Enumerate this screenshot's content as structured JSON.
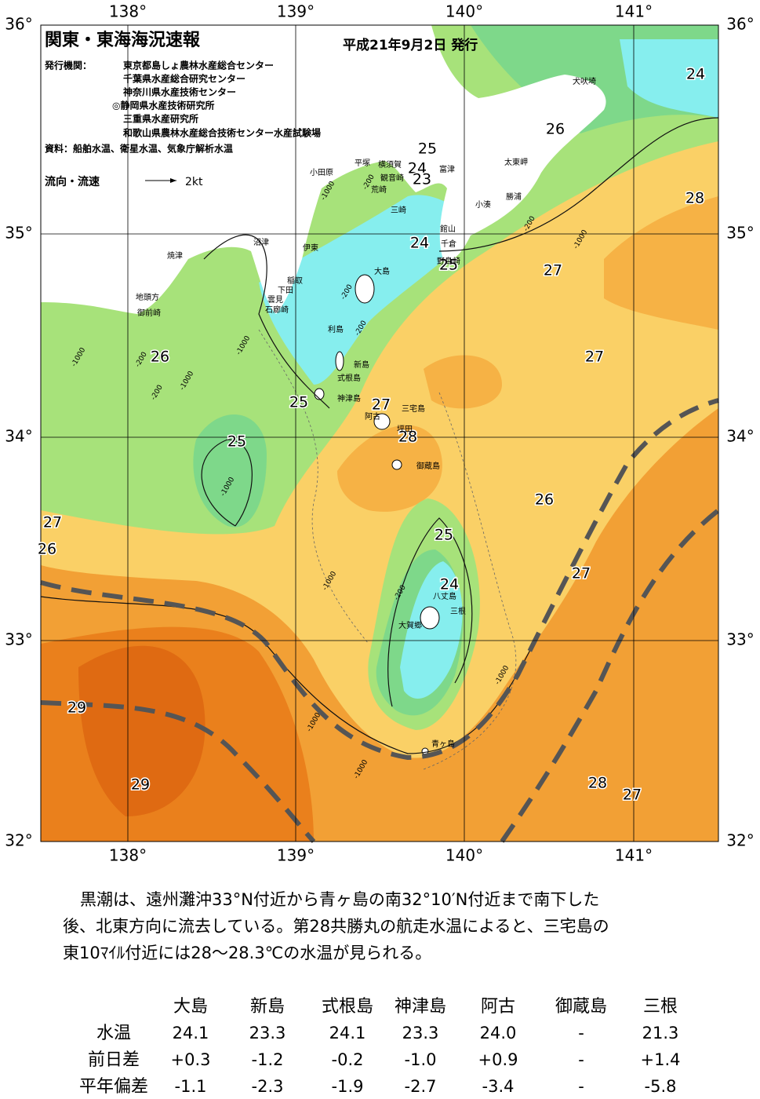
{
  "header": {
    "title": "関東・東海海況速報",
    "date": "平成21年9月2日 発行",
    "issuers_label": "発行機関：",
    "issuers": [
      "東京都島しょ農林水産総合センター",
      "千葉県水産総合研究センター",
      "神奈川県水産技術センター",
      "◎静岡県水産技術研究所",
      "三重県水産研究所",
      "和歌山県農林水産総合技術センター水産試験場"
    ],
    "source": "資料：船舶水温、衛星水温、気象庁解析水温",
    "legend": "流向・流速",
    "legend_scale": "2kt"
  },
  "map": {
    "lon_labels": [
      "138°",
      "139°",
      "140°",
      "141°"
    ],
    "lat_labels": [
      "36°",
      "35°",
      "34°",
      "33°",
      "32°"
    ],
    "isotherm_labels": [
      "24",
      "26",
      "28",
      "25",
      "24",
      "23",
      "24",
      "25",
      "27",
      "27",
      "26",
      "25",
      "27",
      "28",
      "25",
      "26",
      "27",
      "26",
      "25",
      "24",
      "27",
      "29",
      "29",
      "28",
      "27"
    ],
    "places": [
      "犬吠埼",
      "太東岬",
      "勝浦",
      "小湊",
      "富津",
      "横須賀",
      "観音崎",
      "荒崎",
      "平塚",
      "小田原",
      "三崎",
      "館山",
      "千倉",
      "野島崎",
      "大島",
      "沼津",
      "伊東",
      "焼津",
      "稲取",
      "下田",
      "雲見",
      "石廊崎",
      "地頭方",
      "御前崎",
      "利島",
      "新島",
      "式根島",
      "神津島",
      "三宅島",
      "阿古",
      "坪田",
      "御蔵島",
      "八丈島",
      "三根",
      "大賀郷",
      "青ヶ島"
    ],
    "depth_labels": [
      "-1000",
      "-200",
      "-200",
      "-1000",
      "-200",
      "-200",
      "-1000",
      "-200",
      "-1000",
      "-1000",
      "-1000",
      "-200",
      "-1000",
      "-1000",
      "-1000",
      "-1000",
      "-200"
    ]
  },
  "summary": [
    "黒潮は、遠州灘沖33°N付近から青ヶ島の南32°10′N付近まで南下した",
    "後、北東方向に流去している。第28共勝丸の航走水温によると、三宅島の",
    "東10ﾏｲﾙ付近には28～28.3℃の水温が見られる。"
  ],
  "table": {
    "columns": [
      "大島",
      "新島",
      "式根島",
      "神津島",
      "阿古",
      "御蔵島",
      "三根"
    ],
    "rows": [
      {
        "label": "水温",
        "values": [
          "24.1",
          "23.3",
          "24.1",
          "23.3",
          "24.0",
          "-",
          "21.3"
        ]
      },
      {
        "label": "前日差",
        "values": [
          "+0.3",
          "-1.2",
          "-0.2",
          "-1.0",
          "+0.9",
          "-",
          "+1.4"
        ]
      },
      {
        "label": "平年偏差",
        "values": [
          "-1.1",
          "-2.3",
          "-1.9",
          "-2.7",
          "-3.4",
          "-",
          "-5.8"
        ]
      }
    ]
  }
}
